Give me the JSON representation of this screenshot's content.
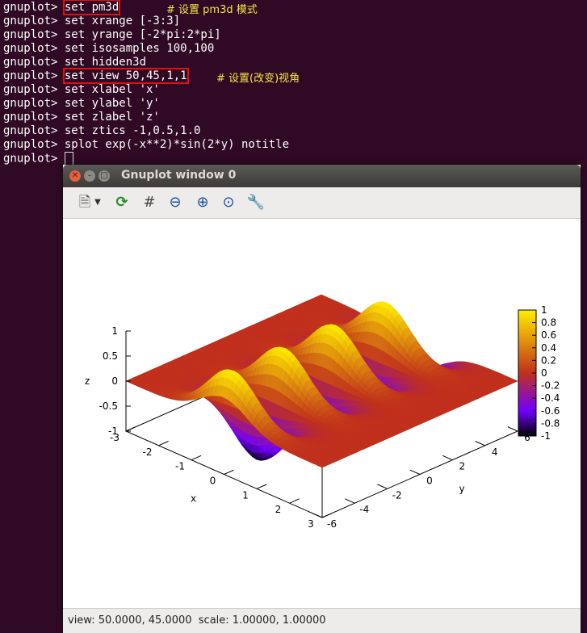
{
  "terminal": {
    "prompt": "gnuplot>",
    "lines": [
      {
        "cmd": "set pm3d",
        "comment": "# 设置 pm3d 模式"
      },
      {
        "cmd": "set xrange [-3:3]"
      },
      {
        "cmd": "set yrange [-2*pi:2*pi]"
      },
      {
        "cmd": "set isosamples 100,100"
      },
      {
        "cmd": "set hidden3d"
      },
      {
        "cmd": "set view 50,45,1,1",
        "comment": "# 设置(改变)视角"
      },
      {
        "cmd": "set xlabel 'x'"
      },
      {
        "cmd": "set ylabel 'y'"
      },
      {
        "cmd": "set zlabel 'z'"
      },
      {
        "cmd": "set ztics -1,0.5,1.0"
      },
      {
        "cmd": "splot exp(-x**2)*sin(2*y) notitle"
      },
      {
        "cmd": ""
      }
    ]
  },
  "window": {
    "title": "Gnuplot window 0",
    "status": "view: 50.0000, 45.0000  scale: 1.00000, 1.00000",
    "toolbar": [
      "export-icon",
      "replot-icon",
      "grid-icon",
      "zoom-out-icon",
      "zoom-in-icon",
      "zoom-fit-icon",
      "settings-icon"
    ]
  },
  "chart_data": {
    "type": "surface",
    "function": "exp(-x**2)*sin(2*y)",
    "xlabel": "x",
    "ylabel": "y",
    "zlabel": "z",
    "xlim": [
      -3,
      3
    ],
    "ylim": [
      -6,
      6
    ],
    "zlim": [
      -1,
      1
    ],
    "xticks": [
      "-3",
      "-2",
      "-1",
      "0",
      "1",
      "2",
      "3"
    ],
    "yticks": [
      "-6",
      "-4",
      "-2",
      "0",
      "2",
      "4",
      "6"
    ],
    "zticks": [
      "1",
      "0.5",
      "0",
      "-0.5",
      "-1"
    ],
    "colorbar_ticks": [
      "1",
      "0.8",
      "0.6",
      "0.4",
      "0.2",
      "0",
      "-0.2",
      "-0.4",
      "-0.6",
      "-0.8",
      "-1"
    ],
    "view": [
      50,
      45,
      1,
      1
    ],
    "colors": {
      "high": "#ffee00",
      "mid": "#c0301c",
      "low": "#7000ff",
      "min": "#000000"
    }
  }
}
